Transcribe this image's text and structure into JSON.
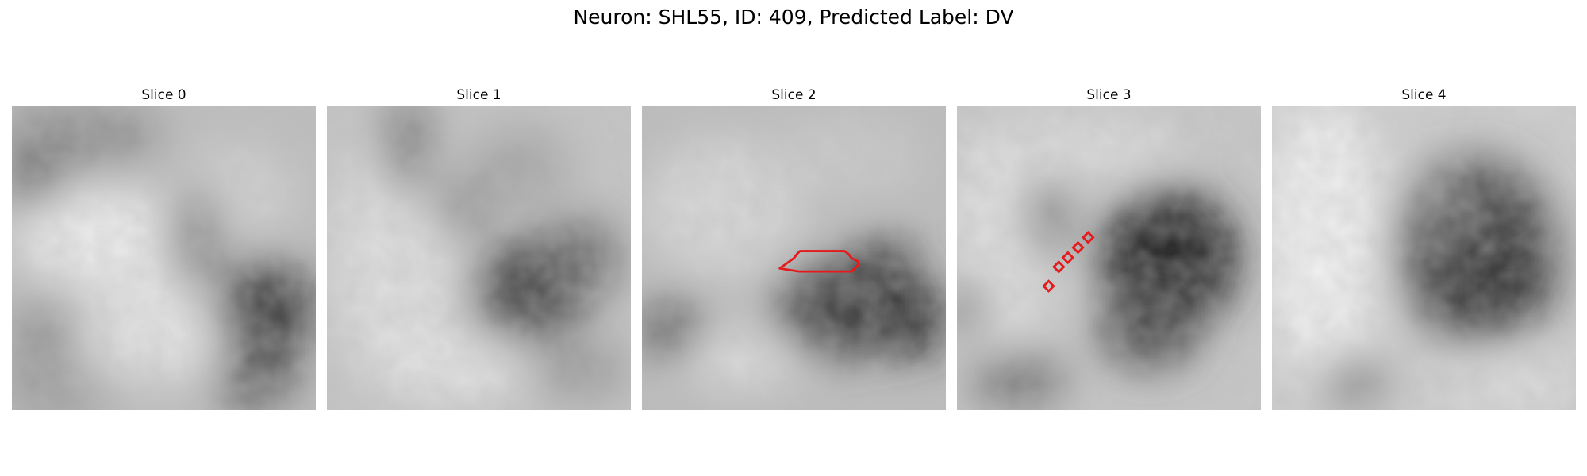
{
  "figure": {
    "suptitle": "Neuron: SHL55, ID: 409, Predicted Label: DV",
    "overlay_color": "#e41a1c",
    "panels": [
      {
        "title": "Slice 0"
      },
      {
        "title": "Slice 1"
      },
      {
        "title": "Slice 2",
        "overlay": "polygon outline"
      },
      {
        "title": "Slice 3",
        "overlay": "diamond markers"
      },
      {
        "title": "Slice 4"
      }
    ]
  }
}
